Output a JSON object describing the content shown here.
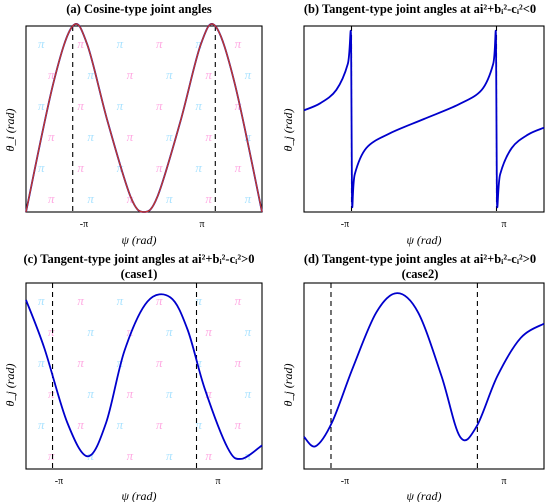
{
  "chart_data": [
    {
      "type": "line",
      "title": "(a) Cosine-type joint angles",
      "xlabel": "ψ (rad)",
      "ylabel": "θ_i (rad)",
      "xticks": [
        "-π",
        "π"
      ],
      "xlim": [
        -5.2,
        5.2
      ],
      "ylim": [
        -1.0,
        1.0
      ],
      "markers": [
        -3.1416,
        3.1416
      ],
      "series": [
        {
          "color": "#0000cc",
          "x": [
            -5.2,
            -4.0,
            -3.1416,
            -2.5,
            -1.6,
            -0.6,
            0.0,
            0.6,
            1.6,
            2.5,
            3.1416,
            4.0,
            5.2
          ],
          "y": [
            -1.0,
            0.38,
            1.0,
            0.8,
            -0.03,
            -0.83,
            -1.0,
            -0.83,
            -0.03,
            0.8,
            1.0,
            0.38,
            -1.0
          ]
        },
        {
          "color": "#c0392b",
          "x": [
            -5.2,
            -4.0,
            -3.1416,
            -2.5,
            -1.6,
            -0.6,
            0.0,
            0.6,
            1.6,
            2.5,
            3.1416,
            4.0,
            5.2
          ],
          "y": [
            -1.0,
            0.38,
            1.0,
            0.8,
            -0.03,
            -0.83,
            -1.0,
            -0.83,
            -0.03,
            0.8,
            1.0,
            0.38,
            -1.0
          ]
        }
      ]
    },
    {
      "type": "line",
      "title": "(b) Tangent-type joint angles at a",
      "title_suffix": "i²+bᵢ²-cᵢ²<0",
      "xlabel": "ψ (rad)",
      "ylabel": "θ_j (rad)",
      "xticks": [
        "-π",
        "π"
      ],
      "xlim": [
        -5.2,
        5.2
      ],
      "ylim": [
        -1.6,
        1.6
      ],
      "markers": [
        -3.1416,
        3.1416
      ],
      "series": [
        {
          "color": "#0000cc",
          "x": [
            -5.2,
            -4.5,
            -3.8,
            -3.3,
            -3.16,
            -3.12,
            -3.0,
            -2.5,
            -1.5,
            0.0,
            1.5,
            2.5,
            3.0,
            3.12,
            3.16,
            3.3,
            3.8,
            4.5,
            5.2
          ],
          "y": [
            0.15,
            0.27,
            0.5,
            0.95,
            1.4,
            -1.4,
            -0.95,
            -0.5,
            -0.25,
            0.0,
            0.25,
            0.5,
            0.95,
            1.4,
            -1.4,
            -0.95,
            -0.5,
            -0.27,
            -0.15
          ]
        }
      ]
    },
    {
      "type": "line",
      "title": "(c) Tangent-type joint angles at a",
      "title_suffix": "i²+bᵢ²-cᵢ²>0",
      "subtitle": "(case1)",
      "xlabel": "ψ (rad)",
      "ylabel": "θ_j (rad)",
      "xticks": [
        "-π",
        "π"
      ],
      "xlim": [
        -4.3,
        6.0
      ],
      "ylim": [
        -1.1,
        1.1
      ],
      "markers": [
        -3.1416,
        3.1416
      ],
      "series": [
        {
          "color": "#0000cc",
          "x": [
            -4.3,
            -3.5,
            -2.5,
            -1.6,
            -0.8,
            0.0,
            1.0,
            2.0,
            2.75,
            3.5,
            4.5,
            5.1,
            6.0
          ],
          "y": [
            0.9,
            0.33,
            -0.55,
            -0.95,
            -0.55,
            0.3,
            0.88,
            0.93,
            0.55,
            -0.15,
            -0.85,
            -0.98,
            -0.82
          ]
        }
      ]
    },
    {
      "type": "line",
      "title": "(d) Tangent-type joint angles at a",
      "title_suffix": "i²+bᵢ²-cᵢ²>0",
      "subtitle": "(case2)",
      "xlabel": "ψ (rad)",
      "ylabel": "θ_j (rad)",
      "xticks": [
        "-π",
        "π"
      ],
      "xlim": [
        -4.3,
        6.0
      ],
      "ylim": [
        -1.1,
        1.1
      ],
      "markers": [
        -3.1416,
        3.1416
      ],
      "series": [
        {
          "color": "#0000cc",
          "x": [
            -4.3,
            -3.8,
            -3.1,
            -2.2,
            -1.2,
            -0.3,
            0.6,
            1.6,
            2.4,
            3.1,
            4.0,
            5.0,
            6.0
          ],
          "y": [
            -0.72,
            -0.83,
            -0.55,
            0.1,
            0.75,
            0.98,
            0.75,
            0.0,
            -0.72,
            -0.6,
            0.0,
            0.45,
            0.62
          ]
        }
      ]
    }
  ],
  "ghost_text_color_1": "#ff66cc",
  "ghost_text_color_2": "#66ccff",
  "ghost_glyph": "π"
}
